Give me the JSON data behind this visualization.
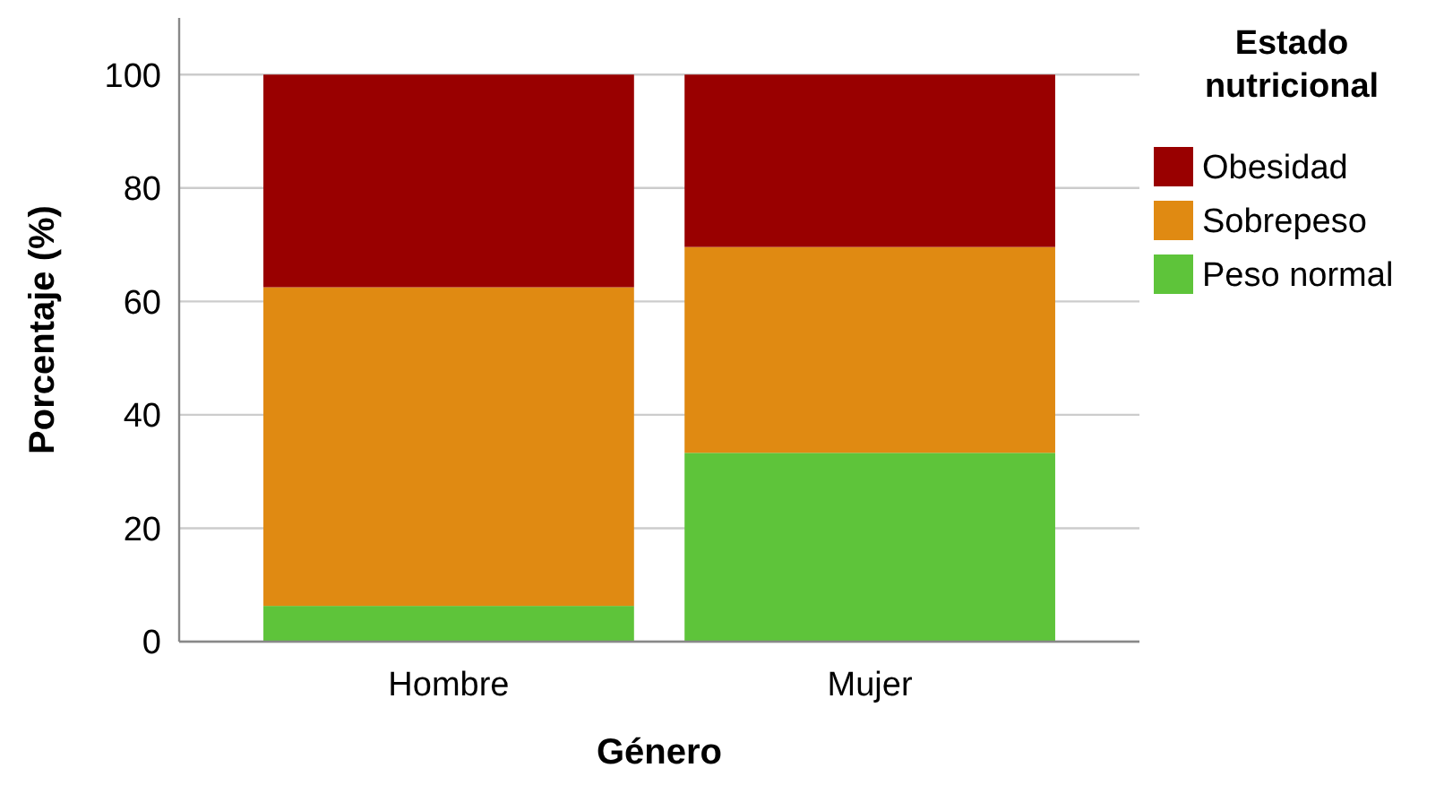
{
  "chart_data": {
    "type": "bar",
    "stacked": true,
    "xlabel": "Género",
    "ylabel": "Porcentaje (%)",
    "legend_title": "Estado nutricional",
    "categories": [
      "Hombre",
      "Mujer"
    ],
    "series": [
      {
        "name": "Peso normal",
        "color": "#5ec43a",
        "values": [
          6.3,
          33.3
        ]
      },
      {
        "name": "Sobrepeso",
        "color": "#e08a12",
        "values": [
          56.2,
          36.3
        ]
      },
      {
        "name": "Obesidad",
        "color": "#990000",
        "values": [
          37.5,
          30.4
        ]
      }
    ],
    "ylim": [
      0,
      110
    ],
    "yticks": [
      0,
      20,
      40,
      60,
      80,
      100
    ],
    "grid": "y",
    "legend": "right"
  }
}
